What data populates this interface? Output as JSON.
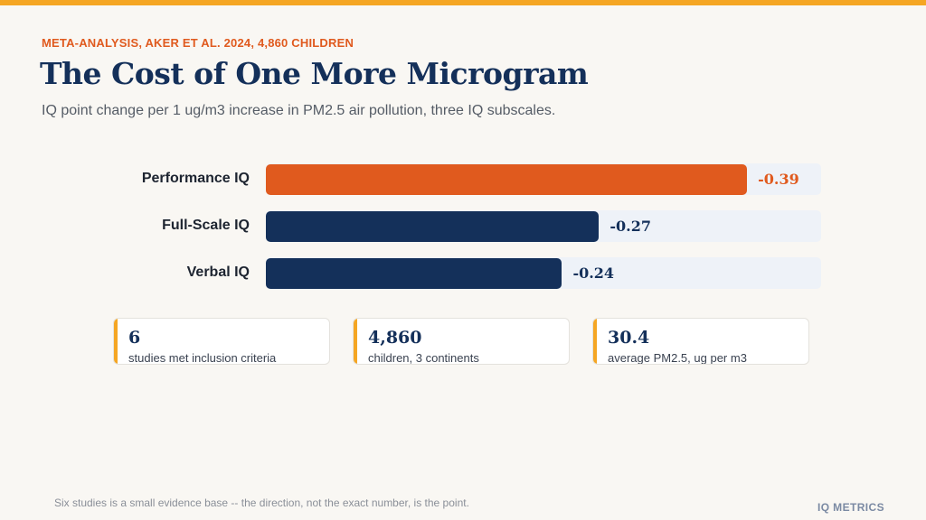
{
  "header": {
    "kicker": "META-ANALYSIS, AKER ET AL. 2024, 4,860 CHILDREN",
    "title": "The Cost of One More Microgram",
    "subtitle": "IQ point change per 1 ug/m3 increase in PM2.5 air pollution, three IQ subscales."
  },
  "chart_data": {
    "type": "bar",
    "orientation": "horizontal",
    "categories": [
      "Performance IQ",
      "Full-Scale IQ",
      "Verbal IQ"
    ],
    "values": [
      -0.39,
      -0.27,
      -0.24
    ],
    "value_labels": [
      "-0.39",
      "-0.27",
      "-0.24"
    ],
    "colors": [
      "#e05a1e",
      "#14305a",
      "#14305a"
    ],
    "label_colors": [
      "#e05a1e",
      "#14305a",
      "#14305a"
    ],
    "xlim": [
      0,
      -0.45
    ],
    "grid": false,
    "legend": "none"
  },
  "stats": [
    {
      "value": "6",
      "label": "studies met inclusion criteria"
    },
    {
      "value": "4,860",
      "label": "children, 3 continents"
    },
    {
      "value": "30.4",
      "label": "average PM2.5, ug per m3"
    }
  ],
  "footer": {
    "note": "Six studies is a small evidence base -- the direction, not the exact number, is the point.",
    "brand": "IQ METRICS"
  },
  "colors": {
    "accent": "#f5a623",
    "highlight": "#e05a1e",
    "navy": "#14305a",
    "track": "#eef2f8",
    "background": "#f9f7f3"
  }
}
